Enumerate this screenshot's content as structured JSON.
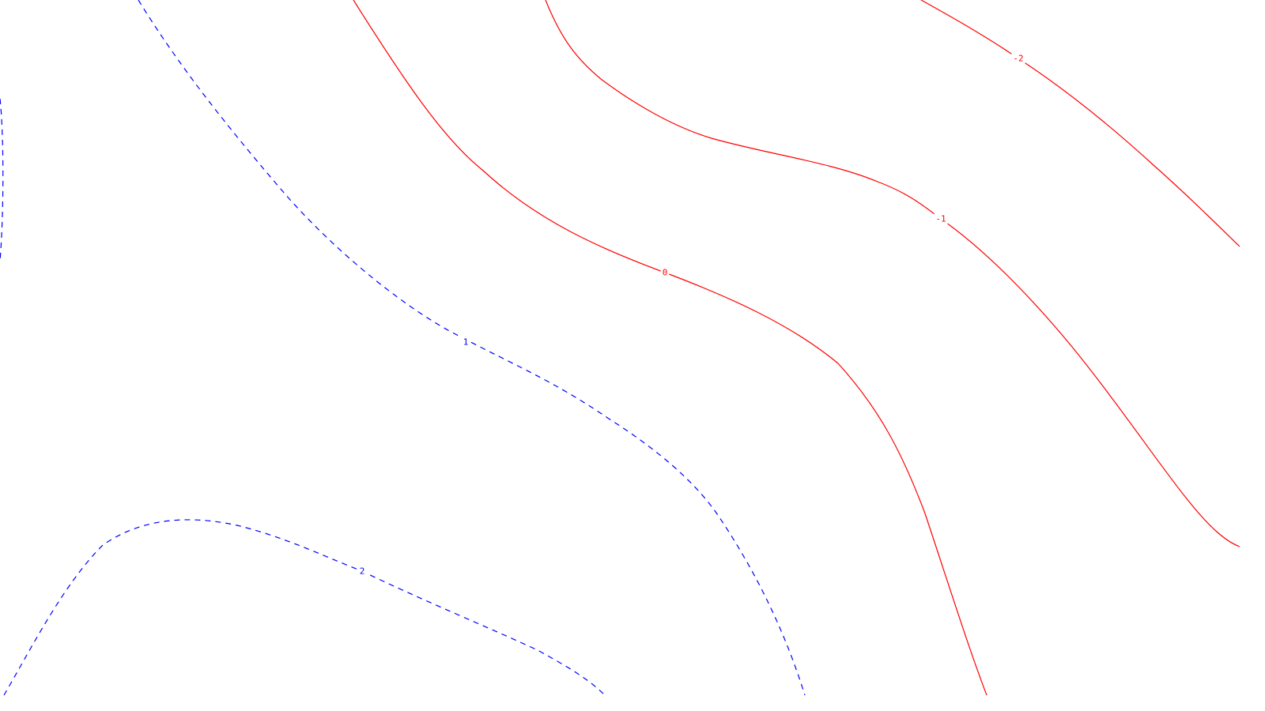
{
  "chart_data": {
    "type": "contour",
    "title": "",
    "xlabel": "",
    "ylabel": "",
    "grid": false,
    "legend": "none",
    "colors": {
      "positive": "#0000ff",
      "negative": "#ff0000",
      "background": "#ffffff"
    },
    "styles": {
      "positive": "dashed",
      "negative": "solid"
    },
    "levels": [
      {
        "value": 2,
        "label": "2"
      },
      {
        "value": 1,
        "label": "1"
      },
      {
        "value": 0,
        "label": "0"
      },
      {
        "value": -1,
        "label": "-1"
      },
      {
        "value": -2,
        "label": "-2"
      }
    ]
  }
}
